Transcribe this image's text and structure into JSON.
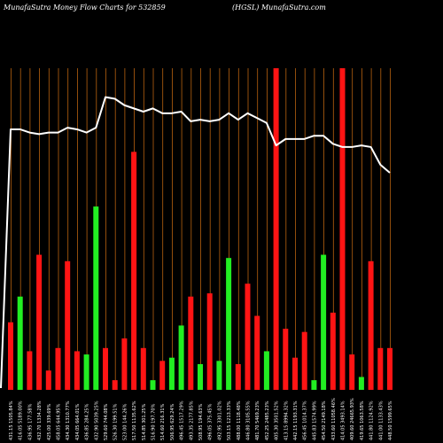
{
  "header": {
    "left": "MunafaSutra  Money Flow  Charts for 532859",
    "right": "(HGSL) MunafaSutra.com"
  },
  "colors": {
    "background": "#000000",
    "gridline": "#b8620f",
    "up_bar": "#22ee22",
    "down_bar": "#ff1414",
    "price_line": "#ffffff",
    "label_text": "#ffffff"
  },
  "chart_data": {
    "type": "bar",
    "title": "",
    "xlabel": "",
    "ylabel": "",
    "ylim": [
      0,
      100
    ],
    "x_labels": [
      "431.15 1505.84%",
      "416.05 5189.00%",
      "436.95 177.58%",
      "432.70 1334.28%",
      "425.00 339.69%",
      "458.05 644.95%",
      "434.30 1310.77%",
      "434.05 664.01%",
      "436.85 284.25%",
      "432.90 5039.25%",
      "529.60 744.08%",
      "526.30 199.51%",
      "523.00 144.26%",
      "517.50 1135.62%",
      "514.85 301.25%",
      "516.90 197.70%",
      "514.60 216.31%",
      "506.95 629.24%",
      "496.45 1517.29%",
      "493.35 2177.85%",
      "508.95 194.63%",
      "496.05 375.45%",
      "492.95 3301.02%",
      "503.15 1213.33%",
      "488.00 1118.48%",
      "446.80 3105.55%",
      "481.70 5469.23%",
      "452.25 2485.23%",
      "405.30 3501.52%",
      "413.15 8994.32%",
      "442.15 1193.31%",
      "456.45 1014.37%",
      "445.83 1574.99%",
      "454.50 2149.18%",
      "433.60 11058.46%",
      "414.05 3493.14%",
      "409.60 24665.93%",
      "419.65 1063.58%",
      "441.80 1124.92%",
      "441.00 1133.43%",
      "448.50 1599.65%"
    ],
    "series": [
      {
        "values": [
          21,
          29,
          12,
          42,
          6,
          13,
          40,
          12,
          11,
          57,
          13,
          3,
          16,
          74,
          13,
          3,
          9,
          10,
          20,
          29,
          8,
          30,
          9,
          41,
          8,
          33,
          23,
          12,
          100,
          19,
          10,
          18,
          3,
          42,
          24,
          100,
          11,
          4,
          40,
          13,
          13
        ],
        "direction": [
          "down",
          "up",
          "down",
          "down",
          "down",
          "down",
          "down",
          "down",
          "up",
          "up",
          "down",
          "down",
          "down",
          "down",
          "down",
          "up",
          "down",
          "up",
          "up",
          "down",
          "up",
          "down",
          "up",
          "up",
          "down",
          "down",
          "down",
          "up",
          "down",
          "down",
          "down",
          "down",
          "up",
          "up",
          "down",
          "down",
          "down",
          "up",
          "down",
          "down",
          "down"
        ]
      },
      {
        "price_line": [
          81,
          81,
          80,
          79.5,
          80,
          80,
          81.5,
          81,
          80,
          81.5,
          91,
          90.5,
          88.5,
          87.5,
          86.5,
          87.5,
          86,
          86,
          86.5,
          83.5,
          84,
          83.5,
          84,
          86,
          84,
          86,
          84.5,
          83,
          76,
          78,
          78,
          78,
          79,
          79,
          76.5,
          75.5,
          75.5,
          76,
          75.5,
          70,
          67.5
        ]
      }
    ],
    "grid": true,
    "grid_style": "vertical"
  }
}
